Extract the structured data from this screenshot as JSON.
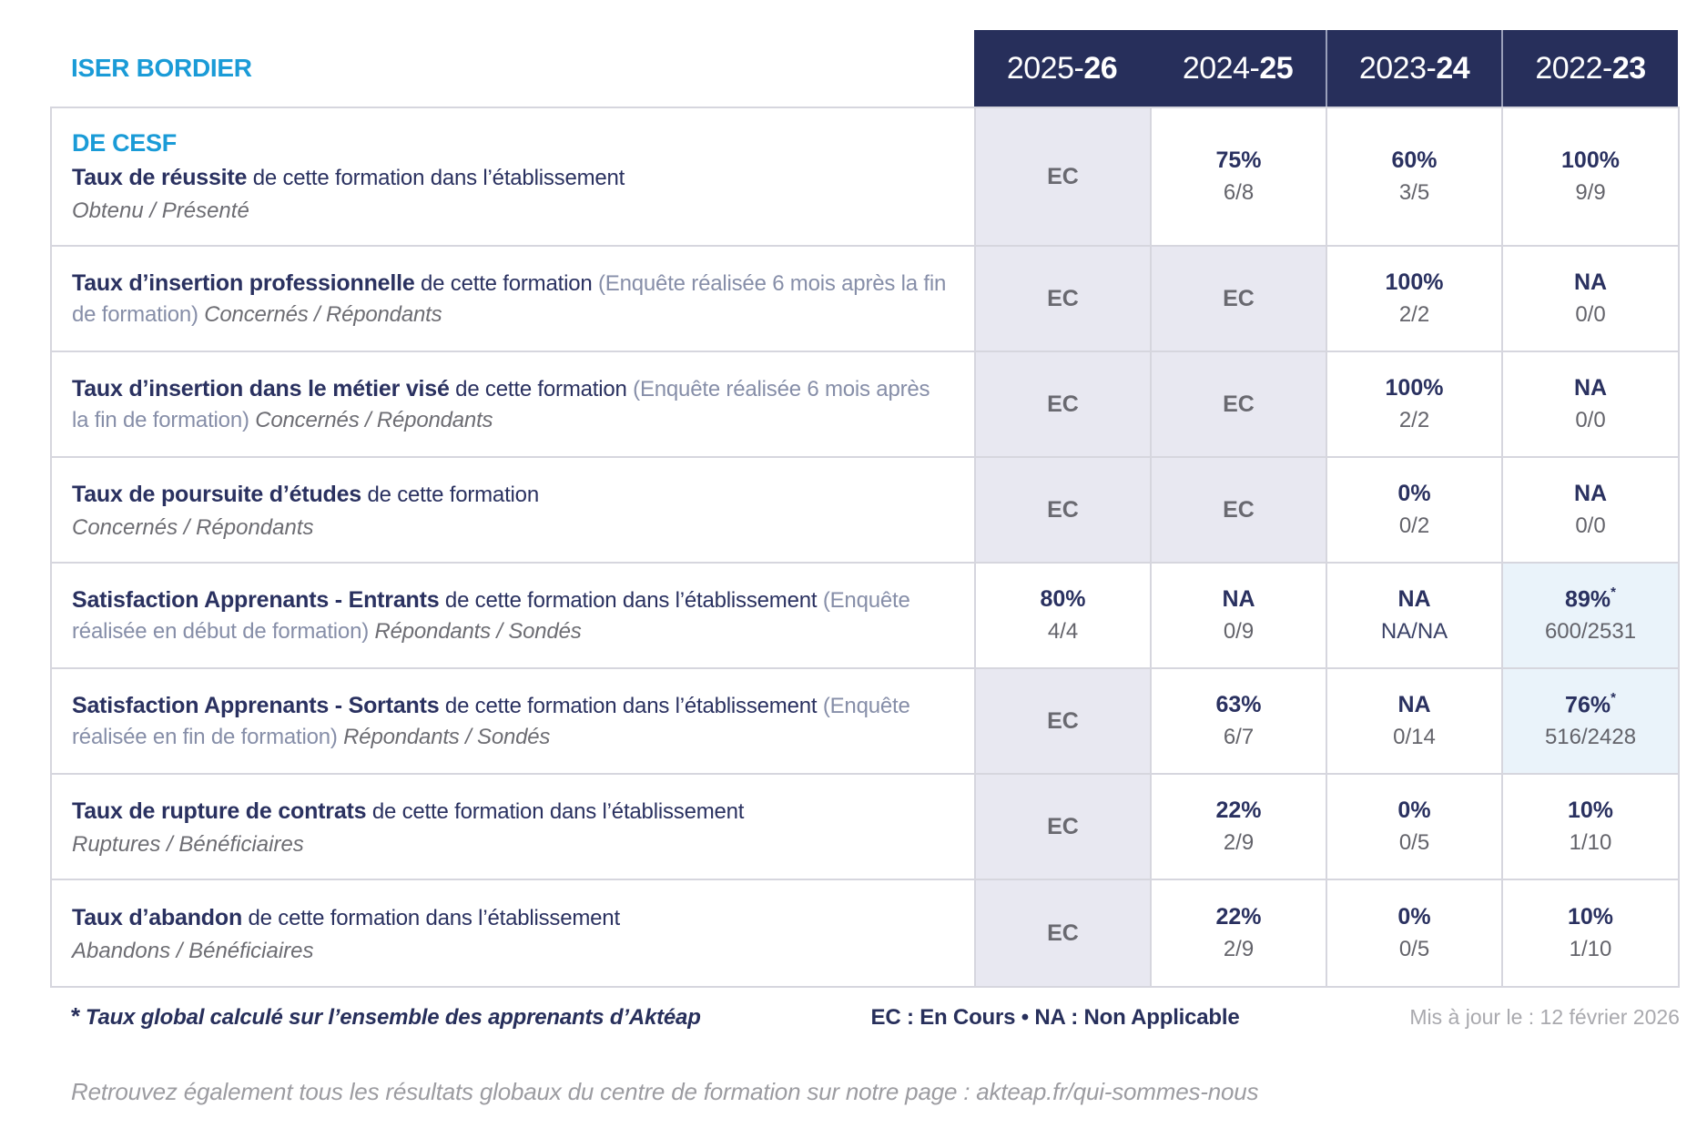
{
  "colors": {
    "accent_blue": "#1A9BD7",
    "navy": "#272F5B",
    "ec_cell_bg": "#E8E8F1",
    "global_rate_cell_bg": "#EAF3FA"
  },
  "header": {
    "school": "ISER BORDIER",
    "years": [
      {
        "pre": "2025-",
        "bold": "26"
      },
      {
        "pre": "2024-",
        "bold": "25"
      },
      {
        "pre": "2023-",
        "bold": "24"
      },
      {
        "pre": "2022-",
        "bold": "23"
      }
    ]
  },
  "program": "DE CESF",
  "rows": [
    {
      "title": "Taux de réussite",
      "desc": "de cette formation dans l’établissement",
      "ratio": "Obtenu / Présenté",
      "cells": [
        {
          "main": "EC"
        },
        {
          "main": "75%",
          "sub": "6/8"
        },
        {
          "main": "60%",
          "sub": "3/5"
        },
        {
          "main": "100%",
          "sub": "9/9"
        }
      ]
    },
    {
      "title": "Taux d’insertion professionnelle",
      "desc": "de cette formation",
      "paren": "(Enquête réalisée 6 mois après la fin de formation)",
      "ratio": "Concernés / Répondants",
      "cells": [
        {
          "main": "EC"
        },
        {
          "main": "EC"
        },
        {
          "main": "100%",
          "sub": "2/2"
        },
        {
          "main": "NA",
          "sub": "0/0"
        }
      ]
    },
    {
      "title": "Taux d’insertion dans le métier visé",
      "desc": "de cette formation",
      "paren": "(Enquête réalisée 6 mois après la fin de formation)",
      "ratio": "Concernés / Répondants",
      "cells": [
        {
          "main": "EC"
        },
        {
          "main": "EC"
        },
        {
          "main": "100%",
          "sub": "2/2"
        },
        {
          "main": "NA",
          "sub": "0/0"
        }
      ]
    },
    {
      "title": "Taux de poursuite d’études",
      "desc": "de cette formation",
      "ratio": "Concernés / Répondants",
      "cells": [
        {
          "main": "EC"
        },
        {
          "main": "EC"
        },
        {
          "main": "0%",
          "sub": "0/2"
        },
        {
          "main": "NA",
          "sub": "0/0"
        }
      ]
    },
    {
      "title": "Satisfaction Apprenants - Entrants",
      "desc": "de cette formation dans l’établissement",
      "paren": "(Enquête réalisée en début de formation)",
      "ratio": "Répondants / Sondés",
      "cells": [
        {
          "main": "80%",
          "sub": "4/4"
        },
        {
          "main": "NA",
          "sub": "0/9"
        },
        {
          "main": "NA",
          "sub": "NA/NA"
        },
        {
          "main": "89%",
          "star": "*",
          "sub": "600/2531"
        }
      ]
    },
    {
      "title": "Satisfaction Apprenants - Sortants",
      "desc": "de cette formation dans l’établissement",
      "paren": "(Enquête réalisée en fin de formation)",
      "ratio": "Répondants / Sondés",
      "cells": [
        {
          "main": "EC"
        },
        {
          "main": "63%",
          "sub": "6/7"
        },
        {
          "main": "NA",
          "sub": "0/14"
        },
        {
          "main": "76%",
          "star": "*",
          "sub": "516/2428"
        }
      ]
    },
    {
      "title": "Taux de rupture de contrats",
      "desc": "de cette formation dans l’établissement",
      "ratio": "Ruptures / Bénéficiaires",
      "cells": [
        {
          "main": "EC"
        },
        {
          "main": "22%",
          "sub": "2/9"
        },
        {
          "main": "0%",
          "sub": "0/5"
        },
        {
          "main": "10%",
          "sub": "1/10"
        }
      ]
    },
    {
      "title": "Taux d’abandon",
      "desc": "de cette formation dans l’établissement",
      "ratio": "Abandons / Bénéficiaires",
      "cells": [
        {
          "main": "EC"
        },
        {
          "main": "22%",
          "sub": "2/9"
        },
        {
          "main": "0%",
          "sub": "0/5"
        },
        {
          "main": "10%",
          "sub": "1/10"
        }
      ]
    }
  ],
  "footer": {
    "star": "*",
    "note": "Taux global calculé sur l’ensemble des apprenants d’Aktéap",
    "legend": "EC : En Cours   •   NA : Non Applicable",
    "updated": "Mis à jour le : 12 février 2026",
    "site_note": "Retrouvez également tous les résultats globaux du centre de formation sur notre page : akteap.fr/qui-sommes-nous"
  }
}
